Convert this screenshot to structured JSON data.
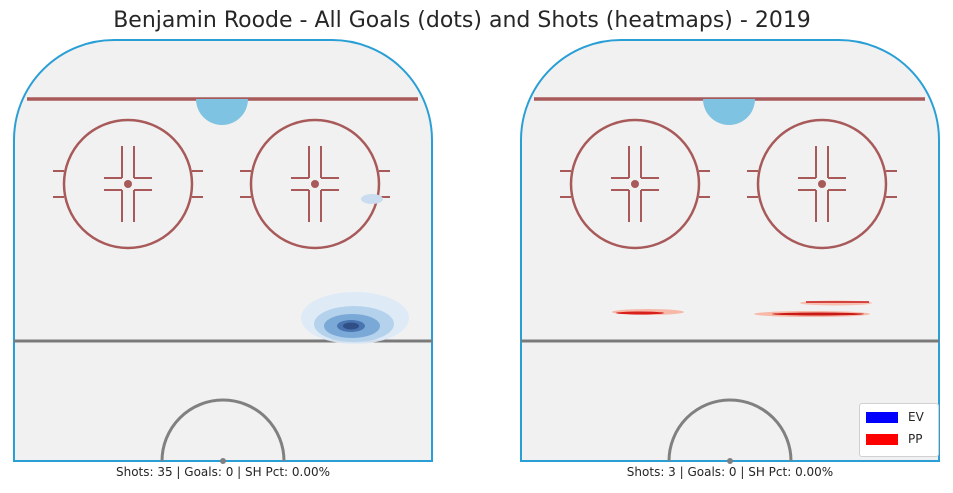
{
  "title": "Benjamin Roode - All Goals (dots) and Shots (heatmaps) - 2019",
  "colors": {
    "ev": "#0000ff",
    "pp": "#ff0000",
    "board": "#2a9fd6",
    "red_line": "#a85a5a",
    "blue_line": "#808080",
    "ice": "#f1f1f1"
  },
  "chart_data": [
    {
      "type": "heatmap",
      "panel": "EV",
      "caption": "Shots: 35 | Goals: 0 | SH Pct: 0.00%",
      "stats": {
        "shots": 35,
        "goals": 0,
        "sh_pct": "0.00%"
      },
      "goals": [],
      "hotspots": [
        {
          "x": 0.8,
          "y": 0.68,
          "intensity": 1.0
        },
        {
          "x": 0.86,
          "y": 0.38,
          "intensity": 0.2
        }
      ]
    },
    {
      "type": "heatmap",
      "panel": "PP",
      "caption": "Shots: 3 | Goals: 0 | SH Pct: 0.00%",
      "stats": {
        "shots": 3,
        "goals": 0,
        "sh_pct": "0.00%"
      },
      "goals": [],
      "hotspots": [
        {
          "x": 0.27,
          "y": 0.65,
          "intensity": 0.7
        },
        {
          "x": 0.67,
          "y": 0.66,
          "intensity": 0.7
        },
        {
          "x": 0.74,
          "y": 0.62,
          "intensity": 0.6
        }
      ]
    }
  ],
  "legend": [
    {
      "label": "EV",
      "color": "#0000ff"
    },
    {
      "label": "PP",
      "color": "#ff0000"
    }
  ]
}
